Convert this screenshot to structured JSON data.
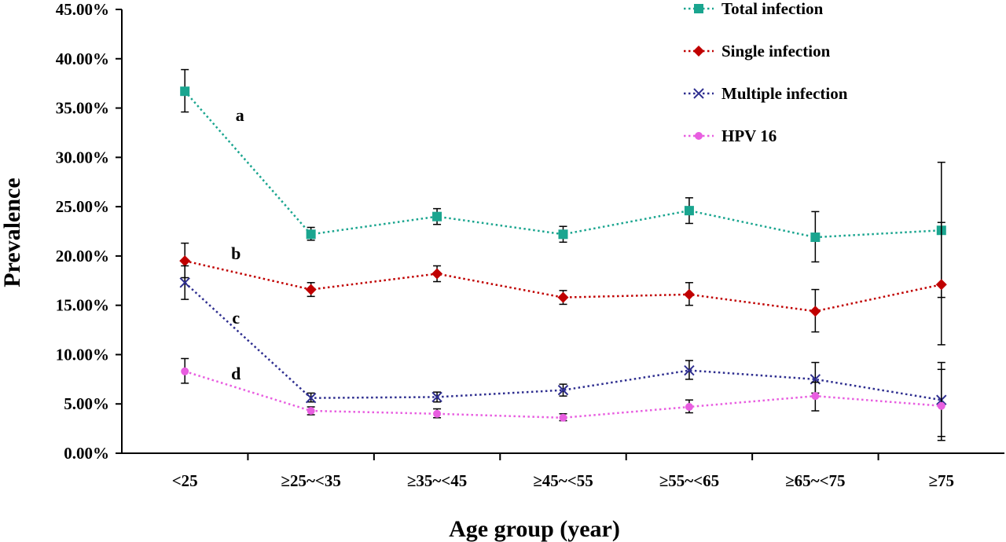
{
  "chart_data": {
    "type": "line",
    "xlabel": "Age group (year)",
    "ylabel": "Prevalence",
    "ylim": [
      0,
      45
    ],
    "yticks": [
      "0.00%",
      "5.00%",
      "10.00%",
      "15.00%",
      "20.00%",
      "25.00%",
      "30.00%",
      "35.00%",
      "40.00%",
      "45.00%"
    ],
    "categories": [
      "<25",
      "≥25~<35",
      "≥35~<45",
      "≥45~<55",
      "≥55~<65",
      "≥65~<75",
      "≥75"
    ],
    "legend_position": "top-right",
    "series": [
      {
        "name": "Total infection",
        "color": "#1aa58f",
        "marker": "square",
        "values": [
          36.7,
          22.2,
          24.0,
          22.2,
          24.6,
          21.9,
          22.6
        ],
        "error": [
          [
            34.6,
            38.9
          ],
          [
            21.6,
            22.9
          ],
          [
            23.2,
            24.8
          ],
          [
            21.4,
            23.0
          ],
          [
            23.3,
            25.9
          ],
          [
            19.4,
            24.5
          ],
          [
            15.8,
            29.5
          ]
        ]
      },
      {
        "name": "Single infection",
        "color": "#c00000",
        "marker": "diamond",
        "values": [
          19.5,
          16.6,
          18.2,
          15.8,
          16.1,
          14.4,
          17.1
        ],
        "error": [
          [
            17.8,
            21.3
          ],
          [
            15.9,
            17.3
          ],
          [
            17.4,
            19.0
          ],
          [
            15.1,
            16.5
          ],
          [
            15.0,
            17.3
          ],
          [
            12.3,
            16.6
          ],
          [
            11.0,
            23.4
          ]
        ]
      },
      {
        "name": "Multiple infection",
        "color": "#2e2e8f",
        "marker": "x",
        "values": [
          17.3,
          5.6,
          5.7,
          6.4,
          8.4,
          7.5,
          5.4
        ],
        "error": [
          [
            15.6,
            19.0
          ],
          [
            5.2,
            6.1
          ],
          [
            5.2,
            6.2
          ],
          [
            5.8,
            7.0
          ],
          [
            7.5,
            9.4
          ],
          [
            6.1,
            9.2
          ],
          [
            1.7,
            9.2
          ]
        ]
      },
      {
        "name": "HPV 16",
        "color": "#e85ee0",
        "marker": "circle",
        "values": [
          8.3,
          4.3,
          4.0,
          3.6,
          4.7,
          5.8,
          4.8
        ],
        "error": [
          [
            7.1,
            9.6
          ],
          [
            3.9,
            4.7
          ],
          [
            3.6,
            4.5
          ],
          [
            3.3,
            4.0
          ],
          [
            4.1,
            5.4
          ],
          [
            4.3,
            7.2
          ],
          [
            1.3,
            8.5
          ]
        ]
      }
    ],
    "annotations": [
      "a",
      "b",
      "c",
      "d"
    ]
  }
}
